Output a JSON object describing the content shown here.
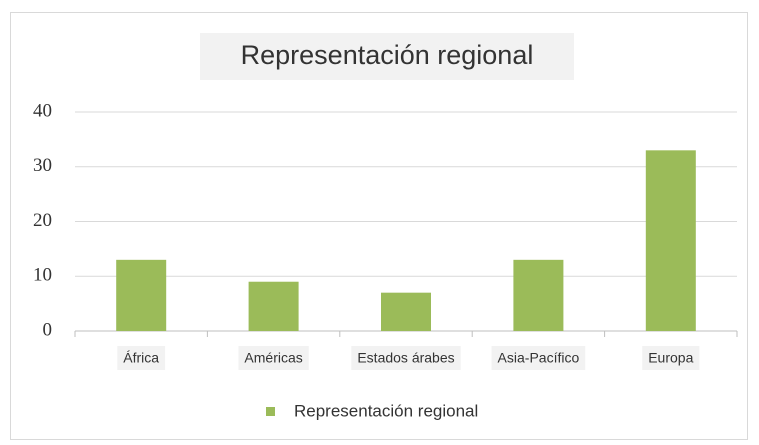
{
  "chart_data": {
    "type": "bar",
    "title": "Representación regional",
    "categories": [
      "África",
      "Américas",
      "Estados árabes",
      "Asia-Pacífico",
      "Europa"
    ],
    "series": [
      {
        "name": "Representación regional",
        "color": "#9bbb59",
        "values": [
          13,
          9,
          7,
          13,
          33
        ]
      }
    ],
    "ylim": [
      0,
      40
    ],
    "yticks": [
      0,
      10,
      20,
      30,
      40
    ],
    "grid": true
  }
}
